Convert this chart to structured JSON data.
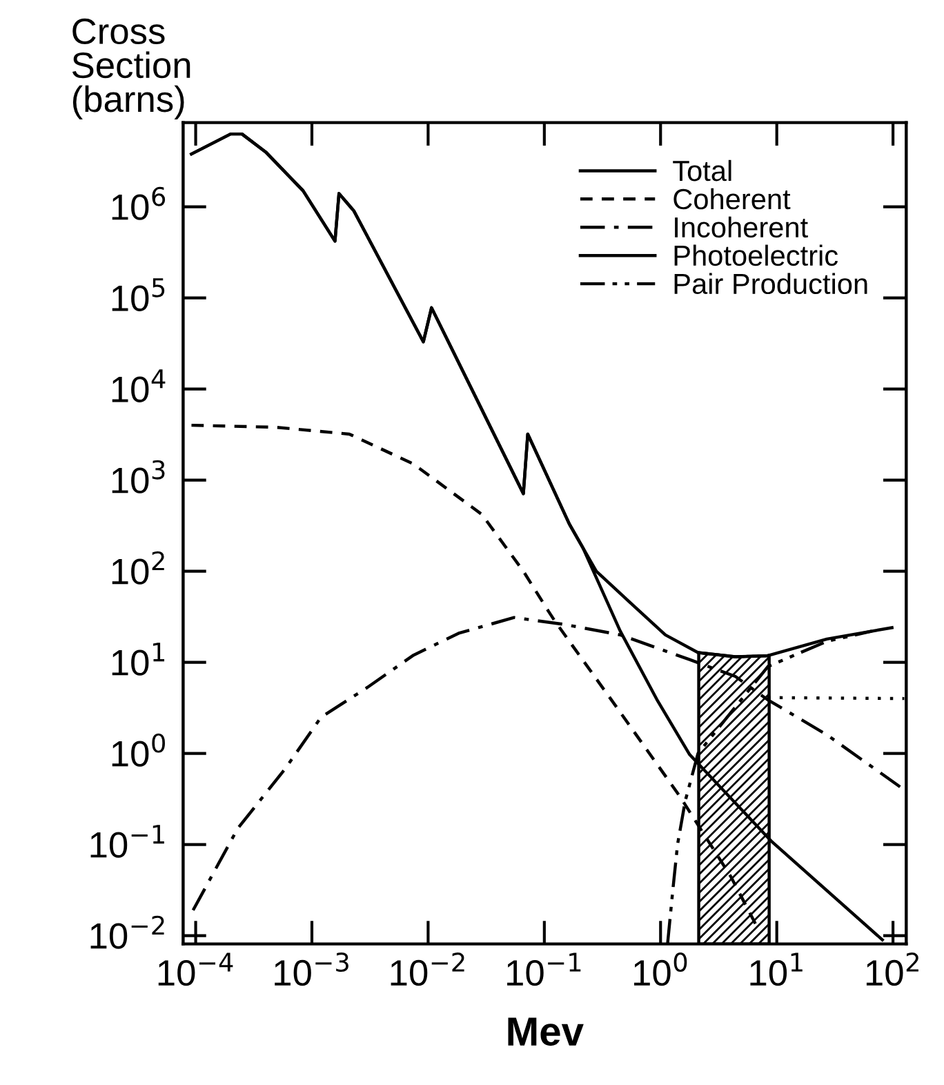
{
  "chart_data": {
    "type": "line",
    "xlabel": "Mev",
    "ylabel": "Cross\nSection\n(barns)",
    "log": "xy",
    "xlim": [
      7.8e-05,
      130
    ],
    "ylim": [
      0.0081,
      8400000.0
    ],
    "xticks": [
      {
        "value": 0.0001,
        "label": "10$^{−4}$"
      },
      {
        "value": 0.001,
        "label": "10$^{−3}$"
      },
      {
        "value": 0.01,
        "label": "10$^{−2}$"
      },
      {
        "value": 0.1,
        "label": "10$^{−1}$"
      },
      {
        "value": 1,
        "label": "10$^{0}$"
      },
      {
        "value": 10,
        "label": "10$^{1}$"
      },
      {
        "value": 100,
        "label": "10$^{2}$"
      }
    ],
    "yticks": [
      {
        "value": 0.01,
        "label": "10$^{−2}$"
      },
      {
        "value": 0.1,
        "label": "10$^{−1}$"
      },
      {
        "value": 1,
        "label": "10$^{0}$"
      },
      {
        "value": 10,
        "label": "10$^{1}$"
      },
      {
        "value": 100,
        "label": "10$^{2}$"
      },
      {
        "value": 1000,
        "label": "10$^{3}$"
      },
      {
        "value": 10000,
        "label": "10$^{4}$"
      },
      {
        "value": 100000,
        "label": "10$^{5}$"
      },
      {
        "value": 1000000,
        "label": "10$^{6}$"
      }
    ],
    "grid": false,
    "legend": "top right",
    "marker": "none",
    "series": [
      {
        "name": "Total",
        "color": "#000000",
        "line_style": "solid",
        "x": [
          9.2e-05,
          0.0002,
          0.00025,
          0.0004,
          0.00084,
          0.00158,
          0.00171,
          0.0023,
          0.0091,
          0.0107,
          0.066,
          0.072,
          0.164,
          0.28,
          0.55,
          1.1,
          2.1,
          4.4,
          8.3,
          27,
          98
        ],
        "values": [
          3800000,
          6300000,
          6300000,
          4000000,
          1500000,
          420000,
          1400000,
          900000,
          33000,
          78000,
          710,
          3200,
          330,
          100,
          45,
          20,
          12.8,
          11.5,
          11.8,
          18,
          24
        ]
      },
      {
        "name": "Coherent",
        "color": "#000000",
        "line_style": "dashed",
        "x": [
          9.2e-05,
          0.00049,
          0.0021,
          0.0075,
          0.029,
          0.066,
          0.109,
          0.124,
          0.42,
          1.46,
          4,
          7
        ],
        "values": [
          4000,
          3800,
          3200,
          1500,
          420,
          100,
          36,
          28,
          3.2,
          0.34,
          0.045,
          0.0115
        ]
      },
      {
        "name": "Incoherent",
        "color": "#000000",
        "line_style": "dashdot",
        "x": [
          9.5e-05,
          0.00023,
          0.00059,
          0.0012,
          0.003,
          0.0075,
          0.0186,
          0.055,
          0.15,
          0.45,
          1.78,
          4.4,
          8.3,
          27,
          115
        ],
        "values": [
          0.019,
          0.15,
          0.68,
          2.5,
          5.3,
          12,
          21,
          31,
          26,
          20,
          10.7,
          7,
          3.9,
          1.6,
          0.43
        ]
      },
      {
        "name": "Photoelectric",
        "color": "#000000",
        "line_style": "solid",
        "x": [
          9.2e-05,
          0.0002,
          0.00025,
          0.0004,
          0.00084,
          0.00158,
          0.00171,
          0.0023,
          0.0091,
          0.0107,
          0.066,
          0.072,
          0.164,
          0.215,
          0.45,
          0.93,
          1.78,
          9.1,
          81
        ],
        "values": [
          3800000,
          6300000,
          6300000,
          4000000,
          1500000,
          420000,
          1400000,
          900000,
          33000,
          78000,
          710,
          3200,
          330,
          180,
          22,
          3.9,
          0.97,
          0.107,
          0.009
        ]
      },
      {
        "name": "Pair Production",
        "color": "#000000",
        "line_style": "dashdotdot",
        "x": [
          1.15,
          1.27,
          1.4,
          1.63,
          2.1,
          8.4,
          27,
          66
        ],
        "values": [
          0.0082,
          0.03,
          0.1,
          0.3,
          1.0,
          9,
          17,
          22
        ]
      },
      {
        "color": "#000000",
        "line_style": "dotted",
        "x": [
          8.3,
          125
        ],
        "values": [
          4.1,
          4.0
        ]
      }
    ],
    "bands": [
      {
        "axis": "x",
        "from": 2.13,
        "to": 8.6,
        "color": "#000000"
      }
    ]
  }
}
